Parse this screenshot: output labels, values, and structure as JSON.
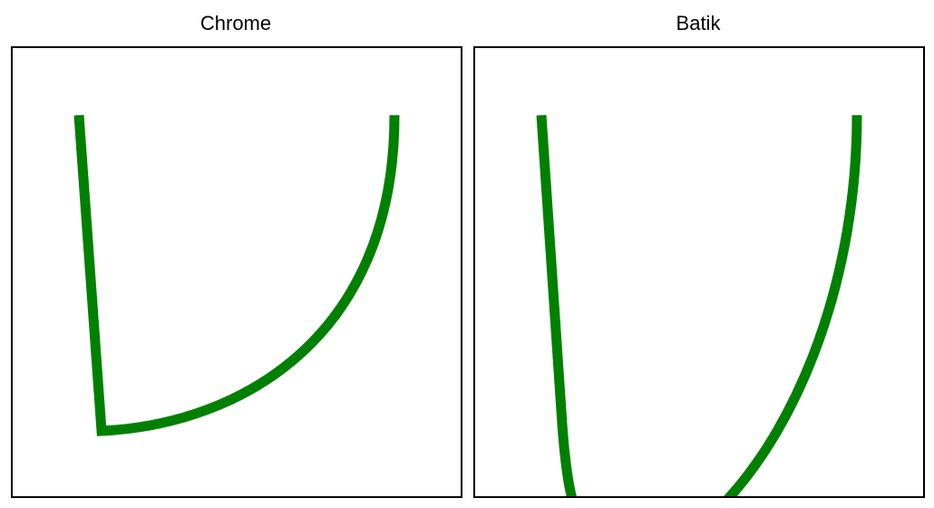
{
  "panels": [
    {
      "title": "Chrome"
    },
    {
      "title": "Batik"
    }
  ],
  "colors": {
    "stroke": "#008000",
    "border": "#000000",
    "background": "#ffffff"
  }
}
